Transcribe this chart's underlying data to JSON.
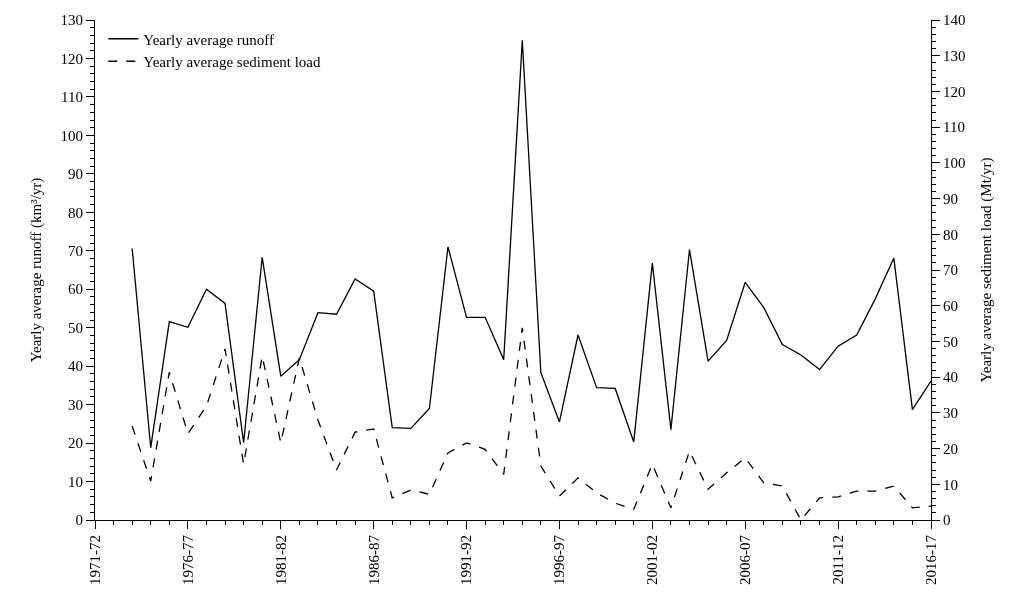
{
  "chart_data": {
    "type": "line",
    "categories": [
      "1971-72",
      null,
      null,
      null,
      null,
      "1976-77",
      null,
      null,
      null,
      null,
      "1981-82",
      null,
      null,
      null,
      null,
      "1986-87",
      null,
      null,
      null,
      null,
      "1991-92",
      null,
      null,
      null,
      null,
      "1996-97",
      null,
      null,
      null,
      null,
      "2001-02",
      null,
      null,
      null,
      null,
      "2006-07",
      null,
      null,
      null,
      null,
      "2011-12",
      null,
      null,
      null,
      null,
      "2016-17"
    ],
    "ylabel": "Yearly average runoff (km³/yr)",
    "y2label": "Yearly average sediment load (Mt/yr)",
    "ylim": [
      0,
      130
    ],
    "yticks": [
      0,
      10,
      20,
      30,
      40,
      50,
      60,
      70,
      80,
      90,
      100,
      110,
      120,
      130
    ],
    "y2lim": [
      0,
      140
    ],
    "y2ticks": [
      0,
      10,
      20,
      30,
      40,
      50,
      60,
      70,
      80,
      90,
      100,
      110,
      120,
      130,
      140
    ],
    "legend": "top left",
    "marker": "none",
    "series": [
      {
        "name": "Yearly average runoff",
        "color": "#000000",
        "line_style": "solid",
        "values": [
          null,
          null,
          70.6,
          18.8,
          51.6,
          50.1,
          60.0,
          56.3,
          20.1,
          68.3,
          37.4,
          41.7,
          53.9,
          53.5,
          62.7,
          59.5,
          24.0,
          23.8,
          29.0,
          71.0,
          52.7,
          52.7,
          41.7,
          124.7,
          38.3,
          25.5,
          48.1,
          34.4,
          34.2,
          20.3,
          66.8,
          23.5,
          70.3,
          41.3,
          46.7,
          61.8,
          55.2,
          45.6,
          42.9,
          39.1,
          45.2,
          48.1,
          57.5,
          68.1,
          28.7,
          36.1
        ]
      },
      {
        "name": "Yearly average sediment load",
        "color": "#000000",
        "line_style": "dashed",
        "axis": "y2",
        "values": [
          null,
          null,
          26.3,
          10.9,
          41.4,
          24.2,
          31.9,
          47.9,
          15.6,
          45.9,
          21.6,
          45.4,
          28.0,
          14.0,
          24.6,
          25.5,
          6.2,
          8.4,
          7.2,
          18.8,
          21.6,
          19.8,
          12.8,
          53.8,
          15.1,
          6.7,
          11.8,
          7.6,
          4.7,
          3.0,
          15.6,
          3.4,
          19.3,
          8.6,
          13.2,
          17.4,
          10.4,
          9.5,
          0,
          6.2,
          6.5,
          8.1,
          8.1,
          9.5,
          3.4,
          3.9
        ]
      }
    ]
  }
}
